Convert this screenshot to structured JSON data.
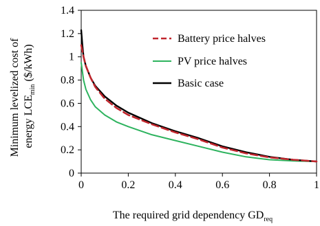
{
  "chart_data": {
    "type": "line",
    "title": "",
    "xlabel": {
      "main": "The required grid dependency GD",
      "sub": "req"
    },
    "ylabel": {
      "line1": "Minimum levelized cost of",
      "line2_main": "energy LCE",
      "line2_sub": "min",
      "line2_tail": " ($/kWh)"
    },
    "xlim": [
      0,
      1
    ],
    "ylim": [
      0,
      1.4
    ],
    "xticks": [
      0,
      0.2,
      0.4,
      0.6,
      0.8,
      1
    ],
    "xtick_labels": [
      "0",
      "0.2",
      "0.4",
      "0.6",
      "0.8",
      "1"
    ],
    "yticks": [
      0,
      0.2,
      0.4,
      0.6,
      0.8,
      1.0,
      1.2,
      1.4
    ],
    "ytick_labels": [
      "0",
      "0.2",
      "0.4",
      "0.6",
      "0.8",
      "1",
      "1.2",
      "1.4"
    ],
    "grid": false,
    "legend_position": "top-right",
    "series": [
      {
        "name": "Battery price halves",
        "color": "#c0262d",
        "dash": "dashed",
        "x": [
          0,
          0.01,
          0.02,
          0.04,
          0.06,
          0.1,
          0.15,
          0.2,
          0.3,
          0.4,
          0.5,
          0.6,
          0.7,
          0.8,
          0.9,
          1.0
        ],
        "y": [
          1.1,
          1.0,
          0.92,
          0.82,
          0.74,
          0.64,
          0.56,
          0.5,
          0.42,
          0.35,
          0.29,
          0.22,
          0.17,
          0.135,
          0.115,
          0.1
        ]
      },
      {
        "name": "PV price halves",
        "color": "#2db35e",
        "dash": "solid",
        "x": [
          0,
          0.01,
          0.02,
          0.04,
          0.06,
          0.1,
          0.15,
          0.2,
          0.3,
          0.4,
          0.5,
          0.6,
          0.7,
          0.8,
          0.9,
          1.0
        ],
        "y": [
          0.95,
          0.8,
          0.72,
          0.63,
          0.57,
          0.5,
          0.44,
          0.4,
          0.33,
          0.28,
          0.23,
          0.18,
          0.14,
          0.115,
          0.105,
          0.1
        ]
      },
      {
        "name": "Basic case",
        "color": "#000000",
        "dash": "solid",
        "x": [
          0,
          0.005,
          0.01,
          0.02,
          0.04,
          0.06,
          0.1,
          0.15,
          0.2,
          0.3,
          0.4,
          0.5,
          0.6,
          0.7,
          0.8,
          0.9,
          1.0
        ],
        "y": [
          1.23,
          1.1,
          1.0,
          0.92,
          0.82,
          0.75,
          0.66,
          0.58,
          0.52,
          0.43,
          0.36,
          0.3,
          0.23,
          0.18,
          0.14,
          0.115,
          0.1
        ]
      }
    ]
  }
}
